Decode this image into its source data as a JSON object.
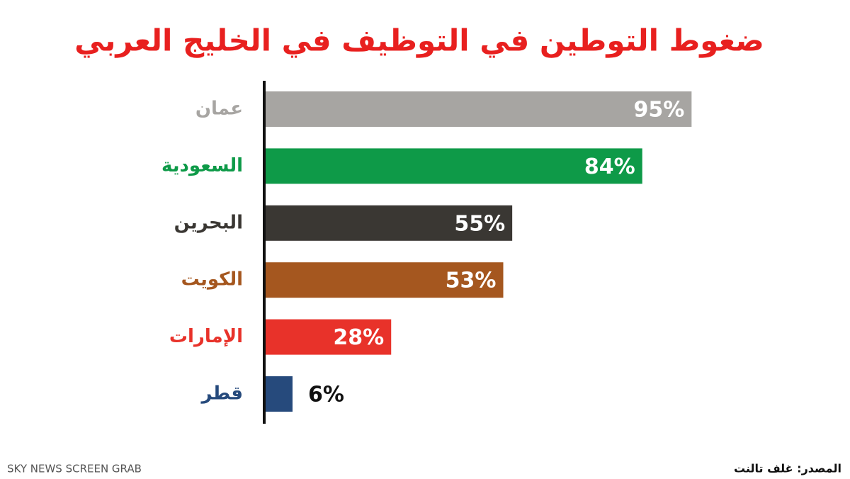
{
  "chart_data": {
    "type": "bar",
    "orientation": "horizontal",
    "title": "ضغوط التوطين في التوظيف في الخليج العربي",
    "categories": [
      "عمان",
      "السعودية",
      "البحرين",
      "الكويت",
      "الإمارات",
      "قطر"
    ],
    "values": [
      95,
      84,
      55,
      53,
      28,
      6
    ],
    "value_labels": [
      "95%",
      "84%",
      "55%",
      "53%",
      "28%",
      "6%"
    ],
    "colors": [
      "#a7a5a2",
      "#0e9a48",
      "#3a3733",
      "#a5571f",
      "#e8322a",
      "#264a7c"
    ],
    "xlim": [
      0,
      100
    ]
  },
  "source": "المصدر: غلف تالنت",
  "watermark": "SKY NEWS SCREEN GRAB"
}
